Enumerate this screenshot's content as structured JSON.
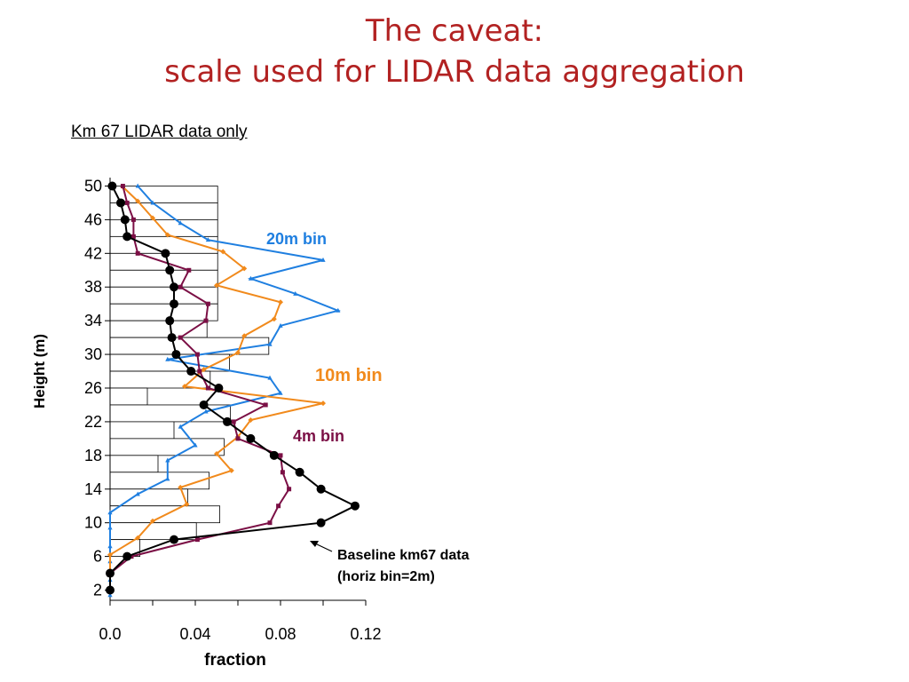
{
  "slide": {
    "title_line1": "The caveat:",
    "title_line2": "scale used for LIDAR data aggregation",
    "subtitle": "Km 67 LIDAR data only",
    "title_color": "#b22222"
  },
  "chart_data": {
    "type": "line",
    "xlabel": "fraction",
    "ylabel": "Height (m)",
    "xlim": [
      0.0,
      0.12
    ],
    "ylim": [
      1,
      51
    ],
    "x_ticks": [
      0.0,
      0.02,
      0.04,
      0.06,
      0.08,
      0.1,
      0.12
    ],
    "x_tick_labels": [
      "0.0",
      "0.04",
      "0.08",
      "0.12"
    ],
    "x_tick_label_values": [
      0.0,
      0.04,
      0.08,
      0.12
    ],
    "y_tick_labels": [
      "50",
      "46",
      "42",
      "38",
      "34",
      "30",
      "26",
      "22",
      "18",
      "14",
      "10",
      "6",
      "2"
    ],
    "y_tick_values": [
      50,
      46,
      42,
      38,
      34,
      30,
      26,
      22,
      18,
      14,
      10,
      6,
      2
    ],
    "histogram": {
      "bin_size_m": 2,
      "bins": [
        {
          "y_low": 48,
          "y_high": 50,
          "value": 0.0505
        },
        {
          "y_low": 46,
          "y_high": 48,
          "value": 0.0505
        },
        {
          "y_low": 44,
          "y_high": 46,
          "value": 0.0505
        },
        {
          "y_low": 42,
          "y_high": 44,
          "value": 0.0505
        },
        {
          "y_low": 40,
          "y_high": 42,
          "value": 0.0505
        },
        {
          "y_low": 38,
          "y_high": 40,
          "value": 0.0505
        },
        {
          "y_low": 36,
          "y_high": 38,
          "value": 0.0505
        },
        {
          "y_low": 34,
          "y_high": 36,
          "value": 0.0505
        },
        {
          "y_low": 32,
          "y_high": 34,
          "value": 0.0455
        },
        {
          "y_low": 30,
          "y_high": 32,
          "value": 0.0745
        },
        {
          "y_low": 28,
          "y_high": 30,
          "value": 0.056
        },
        {
          "y_low": 26,
          "y_high": 28,
          "value": 0.047
        },
        {
          "y_low": 24,
          "y_high": 26,
          "value": 0.0175
        },
        {
          "y_low": 22,
          "y_high": 24,
          "value": 0.0565
        },
        {
          "y_low": 20,
          "y_high": 22,
          "value": 0.03
        },
        {
          "y_low": 18,
          "y_high": 20,
          "value": 0.0535
        },
        {
          "y_low": 16,
          "y_high": 18,
          "value": 0.0225
        },
        {
          "y_low": 14,
          "y_high": 16,
          "value": 0.0465
        },
        {
          "y_low": 12,
          "y_high": 14,
          "value": 0.0365
        },
        {
          "y_low": 10,
          "y_high": 12,
          "value": 0.0515
        },
        {
          "y_low": 8,
          "y_high": 10,
          "value": 0.0405
        },
        {
          "y_low": 6,
          "y_high": 8,
          "value": 0.014
        },
        {
          "y_low": 4,
          "y_high": 6,
          "value": 0.0
        },
        {
          "y_low": 2,
          "y_high": 4,
          "value": 0.0
        }
      ]
    },
    "series": [
      {
        "name": "20m bin",
        "color": "#1f7fe0",
        "marker": "triangle",
        "points": [
          [
            0.013,
            50
          ],
          [
            0.02,
            48
          ],
          [
            0.033,
            45.6
          ],
          [
            0.046,
            43.6
          ],
          [
            0.1,
            41.2
          ],
          [
            0.066,
            39
          ],
          [
            0.087,
            37.2
          ],
          [
            0.107,
            35.2
          ],
          [
            0.08,
            33.4
          ],
          [
            0.075,
            31.2
          ],
          [
            0.027,
            29.4
          ],
          [
            0.075,
            27.2
          ],
          [
            0.08,
            25.4
          ],
          [
            0.045,
            23.2
          ],
          [
            0.033,
            21.4
          ],
          [
            0.04,
            19.2
          ],
          [
            0.027,
            17.4
          ],
          [
            0.027,
            15.2
          ],
          [
            0.013,
            13.4
          ],
          [
            0.0,
            11.2
          ],
          [
            0.0,
            9.4
          ],
          [
            0.0,
            7.2
          ],
          [
            0.0,
            5.4
          ],
          [
            0.0,
            3.2
          ],
          [
            0.0,
            1.4
          ]
        ]
      },
      {
        "name": "10m bin",
        "color": "#f18a1c",
        "marker": "diamond",
        "points": [
          [
            0.006,
            49.9
          ],
          [
            0.013,
            48.2
          ],
          [
            0.02,
            46.2
          ],
          [
            0.027,
            44.2
          ],
          [
            0.053,
            42.2
          ],
          [
            0.063,
            40.2
          ],
          [
            0.05,
            38.2
          ],
          [
            0.08,
            36.2
          ],
          [
            0.077,
            34.2
          ],
          [
            0.063,
            32.2
          ],
          [
            0.06,
            30.2
          ],
          [
            0.044,
            28.2
          ],
          [
            0.035,
            26.2
          ],
          [
            0.1,
            24.2
          ],
          [
            0.066,
            22.2
          ],
          [
            0.06,
            20.2
          ],
          [
            0.05,
            18.2
          ],
          [
            0.057,
            16.2
          ],
          [
            0.033,
            14.2
          ],
          [
            0.036,
            12.2
          ],
          [
            0.02,
            10.2
          ],
          [
            0.013,
            8.2
          ],
          [
            0.0,
            6.2
          ],
          [
            0.0,
            4.2
          ],
          [
            0.0,
            2.2
          ]
        ]
      },
      {
        "name": "4m bin",
        "color": "#7b0f45",
        "marker": "square",
        "points": [
          [
            0.006,
            50
          ],
          [
            0.008,
            48
          ],
          [
            0.011,
            46
          ],
          [
            0.011,
            44
          ],
          [
            0.013,
            42
          ],
          [
            0.037,
            40
          ],
          [
            0.033,
            38
          ],
          [
            0.046,
            36
          ],
          [
            0.045,
            34
          ],
          [
            0.033,
            32
          ],
          [
            0.041,
            30
          ],
          [
            0.042,
            28
          ],
          [
            0.046,
            26
          ],
          [
            0.073,
            24
          ],
          [
            0.058,
            22
          ],
          [
            0.06,
            20
          ],
          [
            0.08,
            18
          ],
          [
            0.081,
            16
          ],
          [
            0.084,
            14
          ],
          [
            0.079,
            12
          ],
          [
            0.075,
            10
          ],
          [
            0.041,
            8
          ],
          [
            0.01,
            6
          ],
          [
            0.0,
            4
          ],
          [
            0.0,
            2
          ]
        ]
      },
      {
        "name": "Baseline km67 data (horiz bin=2m)",
        "color": "#000000",
        "marker": "circle",
        "points": [
          [
            0.001,
            50
          ],
          [
            0.005,
            48
          ],
          [
            0.007,
            46
          ],
          [
            0.008,
            44
          ],
          [
            0.026,
            42
          ],
          [
            0.028,
            40
          ],
          [
            0.03,
            38
          ],
          [
            0.03,
            36
          ],
          [
            0.028,
            34
          ],
          [
            0.029,
            32
          ],
          [
            0.031,
            30
          ],
          [
            0.038,
            28
          ],
          [
            0.051,
            26
          ],
          [
            0.044,
            24
          ],
          [
            0.055,
            22
          ],
          [
            0.066,
            20
          ],
          [
            0.077,
            18
          ],
          [
            0.089,
            16
          ],
          [
            0.099,
            14
          ],
          [
            0.115,
            12
          ],
          [
            0.099,
            10
          ],
          [
            0.03,
            8
          ],
          [
            0.008,
            6
          ],
          [
            0.0,
            4
          ],
          [
            0.0,
            2
          ]
        ]
      }
    ],
    "annotations": [
      {
        "text": "20m bin",
        "color": "#1f7fe0"
      },
      {
        "text": "10m bin",
        "color": "#f18a1c"
      },
      {
        "text": "4m bin",
        "color": "#7b0f45"
      },
      {
        "line1": "Baseline km67 data",
        "line2": "(horiz bin=2m)",
        "color": "#000000"
      }
    ]
  }
}
